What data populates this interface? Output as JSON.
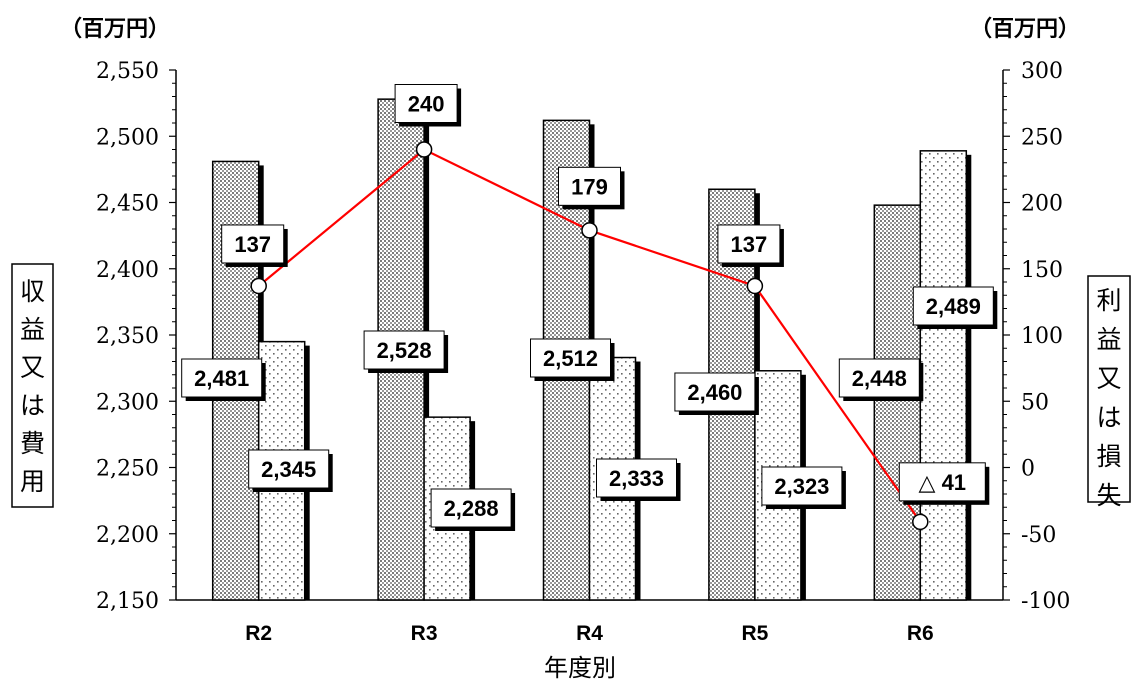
{
  "chart_data": {
    "type": "bar",
    "categories": [
      "R2",
      "R3",
      "R4",
      "R5",
      "R6"
    ],
    "series": [
      {
        "values": [
          2481,
          2528,
          2512,
          2460,
          2448
        ],
        "labels": [
          "2,481",
          "2,528",
          "2,512",
          "2,460",
          "2,448"
        ],
        "axis": "left",
        "pattern": "dense-dots"
      },
      {
        "values": [
          2345,
          2288,
          2333,
          2323,
          2489
        ],
        "labels": [
          "2,345",
          "2,288",
          "2,333",
          "2,323",
          "2,489"
        ],
        "axis": "left",
        "pattern": "sparse-dots"
      },
      {
        "type": "line",
        "values": [
          137,
          240,
          179,
          137,
          -41
        ],
        "labels": [
          "137",
          "240",
          "179",
          "137",
          "△ 41"
        ],
        "axis": "right",
        "color": "#ff0000"
      }
    ],
    "left_axis": {
      "unit": "（百万円）",
      "label": "収益又は費用",
      "ylim": [
        2150,
        2550
      ],
      "ticks": [
        "2,150",
        "2,200",
        "2,250",
        "2,300",
        "2,350",
        "2,400",
        "2,450",
        "2,500",
        "2,550"
      ],
      "tick_values": [
        2150,
        2200,
        2250,
        2300,
        2350,
        2400,
        2450,
        2500,
        2550
      ]
    },
    "right_axis": {
      "unit": "（百万円）",
      "label": "利益又は損失",
      "ylim": [
        -100,
        300
      ],
      "ticks": [
        "-100",
        "-50",
        "0",
        "50",
        "100",
        "150",
        "200",
        "250",
        "300"
      ],
      "tick_values": [
        -100,
        -50,
        0,
        50,
        100,
        150,
        200,
        250,
        300
      ]
    },
    "xlabel": "年度別",
    "grid": false
  }
}
